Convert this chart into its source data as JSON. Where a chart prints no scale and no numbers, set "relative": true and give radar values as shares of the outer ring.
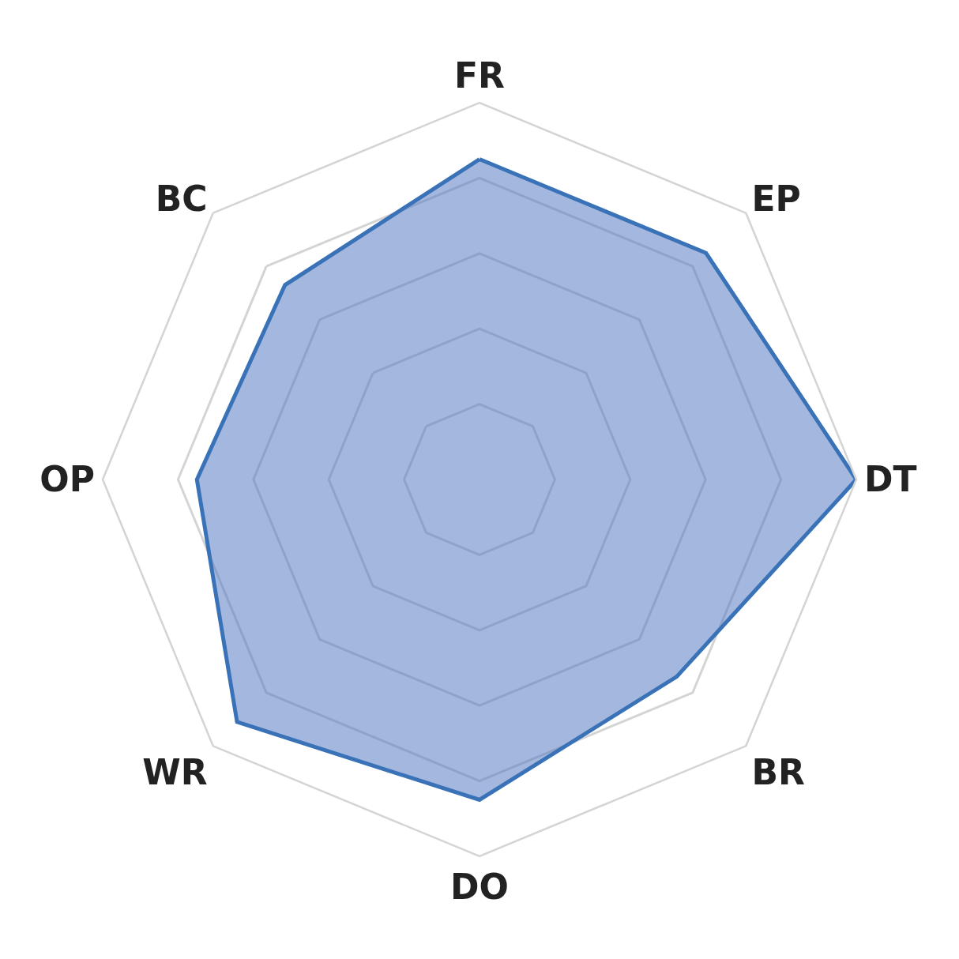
{
  "chart_data": {
    "type": "radar",
    "relative": true,
    "grid": true,
    "marker": "none",
    "line_style": "solid",
    "categories": [
      "FR",
      "EP",
      "DT",
      "BR",
      "DO",
      "WR",
      "OP",
      "BC"
    ],
    "series": [
      {
        "color": "#3a72b8",
        "values": [
          0.85,
          0.85,
          1.0,
          0.74,
          0.85,
          0.91,
          0.75,
          0.73
        ]
      }
    ]
  }
}
